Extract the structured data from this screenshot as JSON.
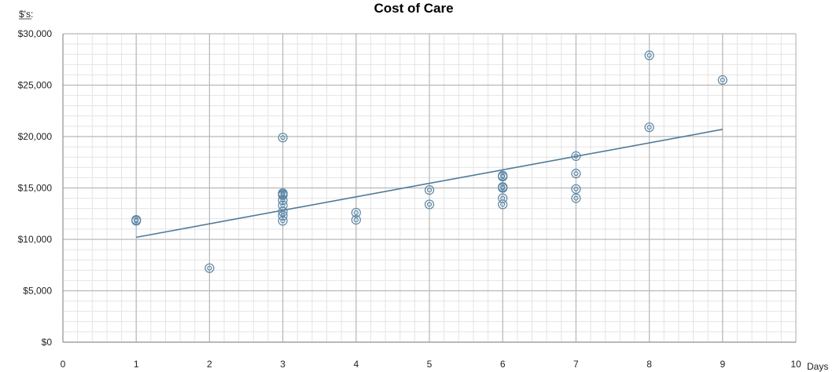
{
  "chart_data": {
    "type": "scatter",
    "title": "Cost of Care",
    "y_unit_label": "$'s:",
    "x_unit_label": "Days",
    "xlim": [
      0,
      10
    ],
    "ylim": [
      0,
      30000
    ],
    "x_ticks": [
      0,
      1,
      2,
      3,
      4,
      5,
      6,
      7,
      8,
      9,
      10
    ],
    "x_tick_labels": [
      "0",
      "1",
      "2",
      "3",
      "4",
      "5",
      "6",
      "7",
      "8",
      "9",
      "10"
    ],
    "y_ticks": [
      0,
      5000,
      10000,
      15000,
      20000,
      25000,
      30000
    ],
    "y_tick_labels": [
      "$0",
      "$5,000",
      "$10,000",
      "$15,000",
      "$20,000",
      "$25,000",
      "$30,000"
    ],
    "grid": true,
    "minor_grid": true,
    "points": [
      {
        "x": 1,
        "y": 11900
      },
      {
        "x": 1,
        "y": 11800
      },
      {
        "x": 2,
        "y": 7200
      },
      {
        "x": 3,
        "y": 19900
      },
      {
        "x": 3,
        "y": 14500
      },
      {
        "x": 3,
        "y": 14400
      },
      {
        "x": 3,
        "y": 14300
      },
      {
        "x": 3,
        "y": 13800
      },
      {
        "x": 3,
        "y": 13300
      },
      {
        "x": 3,
        "y": 12700
      },
      {
        "x": 3,
        "y": 12300
      },
      {
        "x": 3,
        "y": 11800
      },
      {
        "x": 4,
        "y": 12600
      },
      {
        "x": 4,
        "y": 11900
      },
      {
        "x": 5,
        "y": 14800
      },
      {
        "x": 5,
        "y": 13400
      },
      {
        "x": 6,
        "y": 16200
      },
      {
        "x": 6,
        "y": 16100
      },
      {
        "x": 6,
        "y": 15100
      },
      {
        "x": 6,
        "y": 15000
      },
      {
        "x": 6,
        "y": 14000
      },
      {
        "x": 6,
        "y": 13400
      },
      {
        "x": 7,
        "y": 18100
      },
      {
        "x": 7,
        "y": 16400
      },
      {
        "x": 7,
        "y": 14900
      },
      {
        "x": 7,
        "y": 14000
      },
      {
        "x": 8,
        "y": 27900
      },
      {
        "x": 8,
        "y": 20900
      },
      {
        "x": 9,
        "y": 25500
      }
    ],
    "trendline": {
      "x": [
        1,
        9
      ],
      "y": [
        10200,
        20700
      ]
    },
    "colors": {
      "marker": "#5b86a6",
      "trendline": "#4f7a99",
      "major_grid": "#b8b8b8",
      "minor_grid": "#e4e4e4",
      "axis": "#9a9a9a"
    }
  }
}
